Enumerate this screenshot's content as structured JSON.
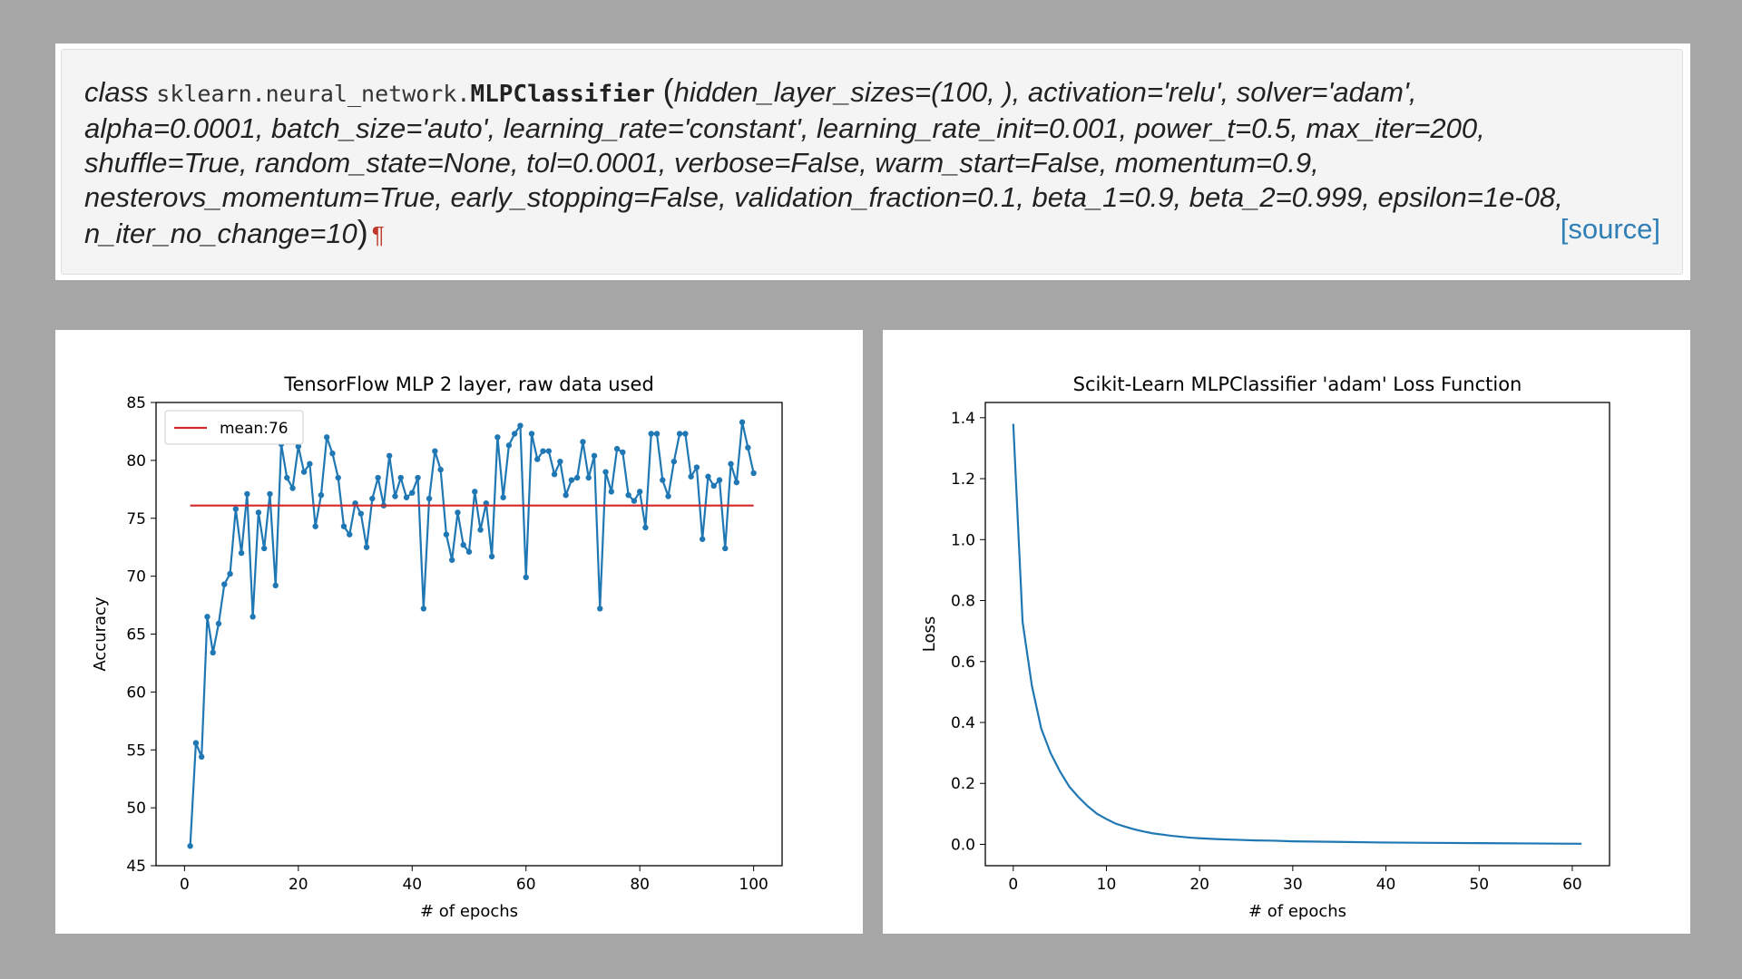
{
  "doc": {
    "keyword": "class",
    "module": "sklearn.neural_network.",
    "classname": "MLPClassifier",
    "open_paren": "(",
    "line1": "hidden_layer_sizes=(100, ), activation='relu', solver='adam',",
    "line2": "alpha=0.0001, batch_size='auto', learning_rate='constant', learning_rate_init=0.001, power_t=0.5, max_iter=200,",
    "line3": "shuffle=True, random_state=None, tol=0.0001, verbose=False, warm_start=False, momentum=0.9,",
    "line4": "nesterovs_momentum=True, early_stopping=False, validation_fraction=0.1, beta_1=0.9, beta_2=0.999, epsilon=1e-08,",
    "line5": "n_iter_no_change=10",
    "close_paren": ")",
    "pilcrow": "¶",
    "source_label": "[source]",
    "link_color": "#2f7fb6"
  },
  "chart_data": [
    {
      "type": "line",
      "title": "TensorFlow MLP 2 layer, raw data used",
      "xlabel": "# of epochs",
      "ylabel": "Accuracy",
      "xlim": [
        -5,
        105
      ],
      "ylim": [
        45,
        85
      ],
      "xticks": [
        0,
        20,
        40,
        60,
        80,
        100
      ],
      "yticks": [
        45,
        50,
        55,
        60,
        65,
        70,
        75,
        80,
        85
      ],
      "grid": false,
      "legend_position": "top-left",
      "series": [
        {
          "name": "",
          "color": "#1f77b4",
          "marker": "circle",
          "x": [
            1,
            2,
            3,
            4,
            5,
            6,
            7,
            8,
            9,
            10,
            11,
            12,
            13,
            14,
            15,
            16,
            17,
            18,
            19,
            20,
            21,
            22,
            23,
            24,
            25,
            26,
            27,
            28,
            29,
            30,
            31,
            32,
            33,
            34,
            35,
            36,
            37,
            38,
            39,
            40,
            41,
            42,
            43,
            44,
            45,
            46,
            47,
            48,
            49,
            50,
            51,
            52,
            53,
            54,
            55,
            56,
            57,
            58,
            59,
            60,
            61,
            62,
            63,
            64,
            65,
            66,
            67,
            68,
            69,
            70,
            71,
            72,
            73,
            74,
            75,
            76,
            77,
            78,
            79,
            80,
            81,
            82,
            83,
            84,
            85,
            86,
            87,
            88,
            89,
            90,
            91,
            92,
            93,
            94,
            95,
            96,
            97,
            98,
            99,
            100
          ],
          "values": [
            46.7,
            55.6,
            54.4,
            66.5,
            63.4,
            65.9,
            69.3,
            70.2,
            75.8,
            72.0,
            77.1,
            66.5,
            75.5,
            72.4,
            77.1,
            69.2,
            81.4,
            78.5,
            77.6,
            81.2,
            79.0,
            79.7,
            74.3,
            77.0,
            82.0,
            80.6,
            78.5,
            74.3,
            73.6,
            76.3,
            75.4,
            72.5,
            76.7,
            78.5,
            76.1,
            80.4,
            76.9,
            78.5,
            76.8,
            77.2,
            78.5,
            67.2,
            76.7,
            80.8,
            79.2,
            73.6,
            71.4,
            75.5,
            72.7,
            72.1,
            77.3,
            74.0,
            76.3,
            71.7,
            82.0,
            76.8,
            81.3,
            82.3,
            83.0,
            69.9,
            82.3,
            80.1,
            80.8,
            80.8,
            78.8,
            79.9,
            77.0,
            78.3,
            78.5,
            81.6,
            78.5,
            80.4,
            67.2,
            79.0,
            77.3,
            81.0,
            80.7,
            77.0,
            76.5,
            77.3,
            74.2,
            82.3,
            82.3,
            78.3,
            76.9,
            79.9,
            82.3,
            82.3,
            78.6,
            79.4,
            73.2,
            78.6,
            77.8,
            78.3,
            72.4,
            79.7,
            78.1,
            83.3,
            81.1,
            78.9
          ]
        },
        {
          "name": "mean:76",
          "color": "#d62728",
          "x": [
            1,
            100
          ],
          "values": [
            76.1,
            76.1
          ]
        }
      ]
    },
    {
      "type": "line",
      "title": "Scikit-Learn MLPClassifier 'adam' Loss Function",
      "xlabel": "# of epochs",
      "ylabel": "Loss",
      "xlim": [
        -3,
        64
      ],
      "ylim": [
        -0.07,
        1.45
      ],
      "xticks": [
        0,
        10,
        20,
        30,
        40,
        50,
        60
      ],
      "yticks": [
        0.0,
        0.2,
        0.4,
        0.6,
        0.8,
        1.0,
        1.2,
        1.4
      ],
      "grid": false,
      "series": [
        {
          "name": "",
          "color": "#1f77b4",
          "x": [
            0,
            1,
            2,
            3,
            4,
            5,
            6,
            7,
            8,
            9,
            10,
            11,
            12,
            13,
            14,
            15,
            16,
            17,
            18,
            19,
            20,
            22,
            24,
            26,
            28,
            30,
            35,
            40,
            45,
            50,
            55,
            61
          ],
          "values": [
            1.38,
            0.73,
            0.52,
            0.38,
            0.3,
            0.24,
            0.19,
            0.155,
            0.125,
            0.1,
            0.083,
            0.068,
            0.058,
            0.049,
            0.042,
            0.036,
            0.032,
            0.028,
            0.025,
            0.022,
            0.02,
            0.017,
            0.015,
            0.013,
            0.012,
            0.01,
            0.008,
            0.006,
            0.005,
            0.004,
            0.003,
            0.002
          ]
        }
      ]
    }
  ]
}
